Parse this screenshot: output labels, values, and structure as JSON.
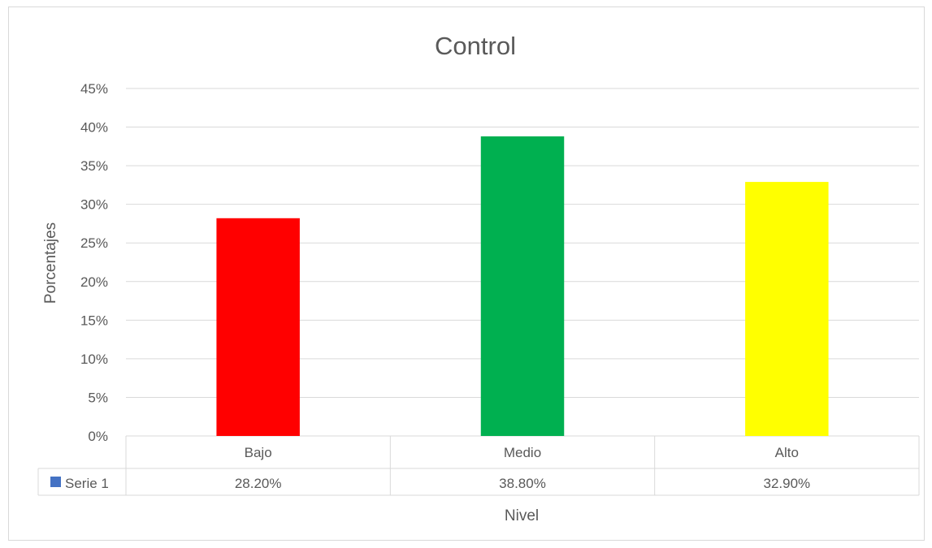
{
  "chart_data": {
    "type": "bar",
    "title": "Control",
    "xlabel": "Nivel",
    "ylabel": "Porcentajes",
    "categories": [
      "Bajo",
      "Medio",
      "Alto"
    ],
    "series": [
      {
        "name": "Serie 1",
        "values": [
          0.282,
          0.388,
          0.329
        ],
        "labels": [
          "28.20%",
          "38.80%",
          "32.90%"
        ]
      }
    ],
    "bar_colors": [
      "#ff0000",
      "#00b050",
      "#ffff00"
    ],
    "legend_color": "#4472c4",
    "ylim": [
      0,
      0.45
    ],
    "yticks": [
      {
        "value": 0,
        "label": "0%"
      },
      {
        "value": 0.05,
        "label": "5%"
      },
      {
        "value": 0.1,
        "label": "10%"
      },
      {
        "value": 0.15,
        "label": "15%"
      },
      {
        "value": 0.2,
        "label": "20%"
      },
      {
        "value": 0.25,
        "label": "25%"
      },
      {
        "value": 0.3,
        "label": "30%"
      },
      {
        "value": 0.35,
        "label": "35%"
      },
      {
        "value": 0.4,
        "label": "40%"
      },
      {
        "value": 0.45,
        "label": "45%"
      }
    ],
    "grid": true,
    "data_table": true
  }
}
